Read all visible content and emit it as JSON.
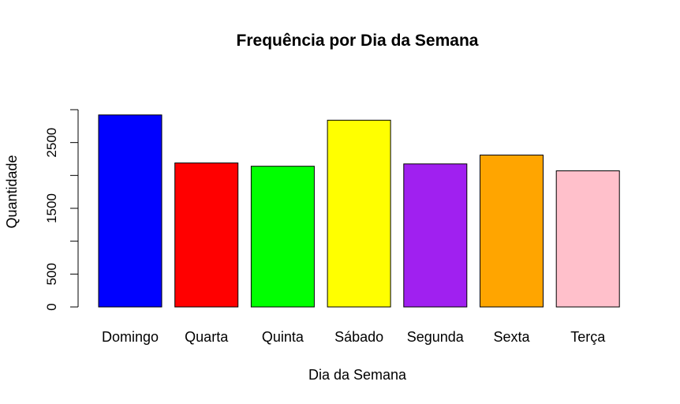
{
  "chart_data": {
    "type": "bar",
    "title": "Frequência por Dia da Semana",
    "xlabel": "Dia da Semana",
    "ylabel": "Quantidade",
    "categories": [
      "Domingo",
      "Quarta",
      "Quinta",
      "Sábado",
      "Segunda",
      "Sexta",
      "Terça"
    ],
    "values": [
      2920,
      2190,
      2140,
      2840,
      2175,
      2310,
      2070
    ],
    "colors": [
      "#0000FF",
      "#FF0000",
      "#00FF00",
      "#FFFF00",
      "#A020F0",
      "#FFA500",
      "#FFC0CB"
    ],
    "ylim": [
      0,
      3000
    ],
    "yticks": [
      0,
      500,
      1000,
      1500,
      2000,
      2500,
      3000
    ],
    "ytick_labels": [
      "0",
      "500",
      "",
      "1500",
      "",
      "2500",
      ""
    ],
    "grid": false,
    "legend": "none"
  }
}
